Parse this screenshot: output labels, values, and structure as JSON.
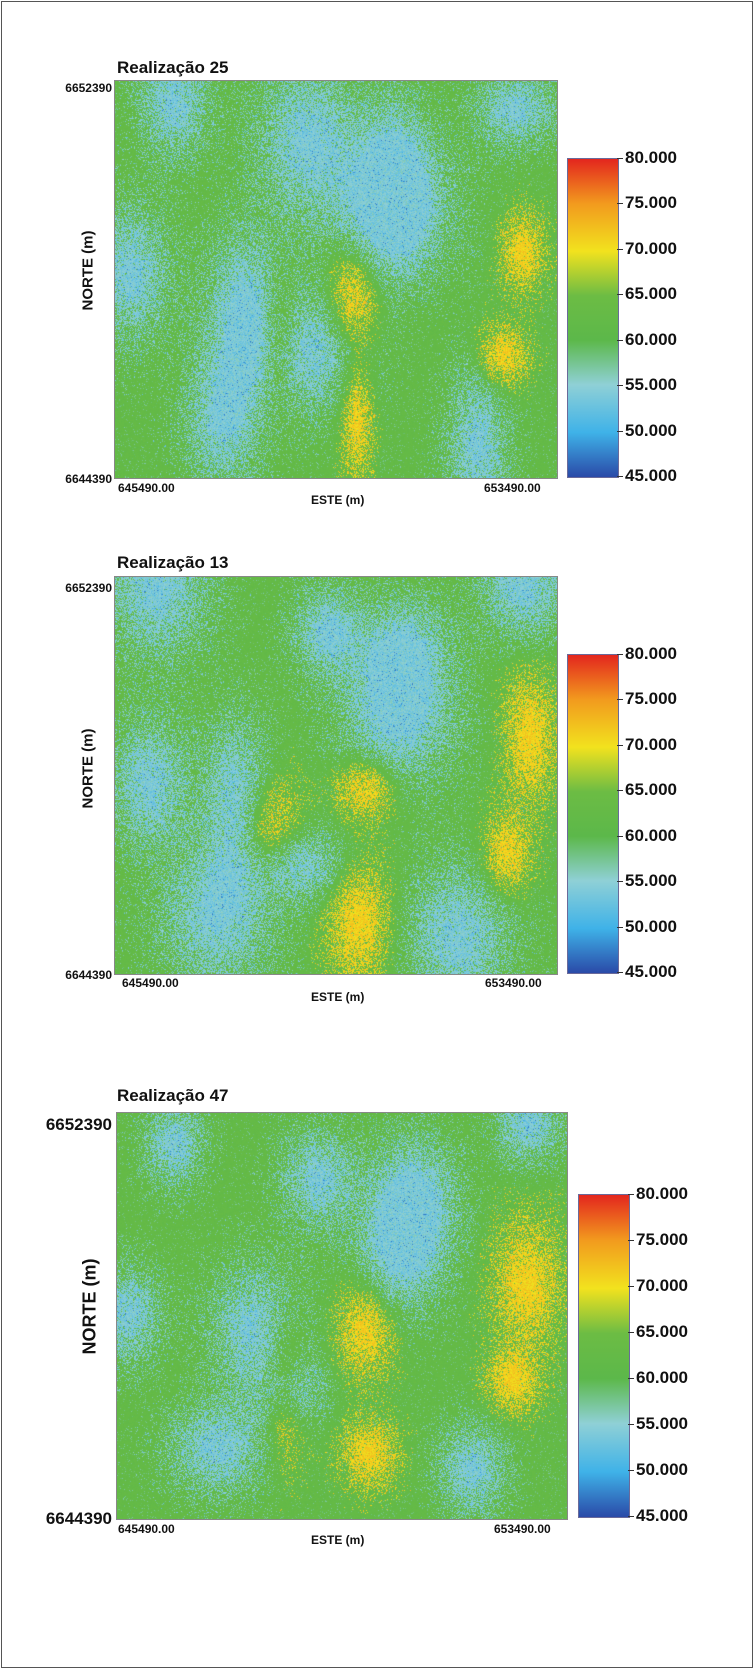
{
  "chart_data": [
    {
      "type": "heatmap",
      "title": "Realização 25",
      "xlabel": "ESTE (m)",
      "ylabel": "NORTE (m)",
      "x_ticks": [
        "645490.00",
        "653490.00"
      ],
      "y_ticks": [
        "6652390",
        "6644390"
      ],
      "xlim": [
        645490.0,
        653490.0
      ],
      "ylim": [
        6644390,
        6652390
      ],
      "colorbar": {
        "min": 45.0,
        "max": 80.0,
        "ticks": [
          "80.000",
          "75.000",
          "70.000",
          "65.000",
          "60.000",
          "55.000",
          "50.000",
          "45.000"
        ]
      },
      "seed": 25
    },
    {
      "type": "heatmap",
      "title": "Realização 13",
      "xlabel": "ESTE (m)",
      "ylabel": "NORTE (m)",
      "x_ticks": [
        "645490.00",
        "653490.00"
      ],
      "y_ticks": [
        "6652390",
        "6644390"
      ],
      "xlim": [
        645490.0,
        653490.0
      ],
      "ylim": [
        6644390,
        6652390
      ],
      "colorbar": {
        "min": 45.0,
        "max": 80.0,
        "ticks": [
          "80.000",
          "75.000",
          "70.000",
          "65.000",
          "60.000",
          "55.000",
          "50.000",
          "45.000"
        ]
      },
      "seed": 13
    },
    {
      "type": "heatmap",
      "title": "Realização 47",
      "xlabel": "ESTE (m)",
      "ylabel": "NORTE (m)",
      "x_ticks": [
        "645490.00",
        "653490.00"
      ],
      "y_ticks": [
        "6652390",
        "6644390"
      ],
      "xlim": [
        645490.0,
        653490.0
      ],
      "ylim": [
        6644390,
        6652390
      ],
      "colorbar": {
        "min": 45.0,
        "max": 80.0,
        "ticks": [
          "80.000",
          "75.000",
          "70.000",
          "65.000",
          "60.000",
          "55.000",
          "50.000",
          "45.000"
        ]
      },
      "seed": 47
    }
  ],
  "colormap": [
    "#2a4aa8",
    "#3fb2e8",
    "#8fd0d6",
    "#5cb84a",
    "#6cbc44",
    "#f2e21e",
    "#f29a1e",
    "#e3261e"
  ]
}
